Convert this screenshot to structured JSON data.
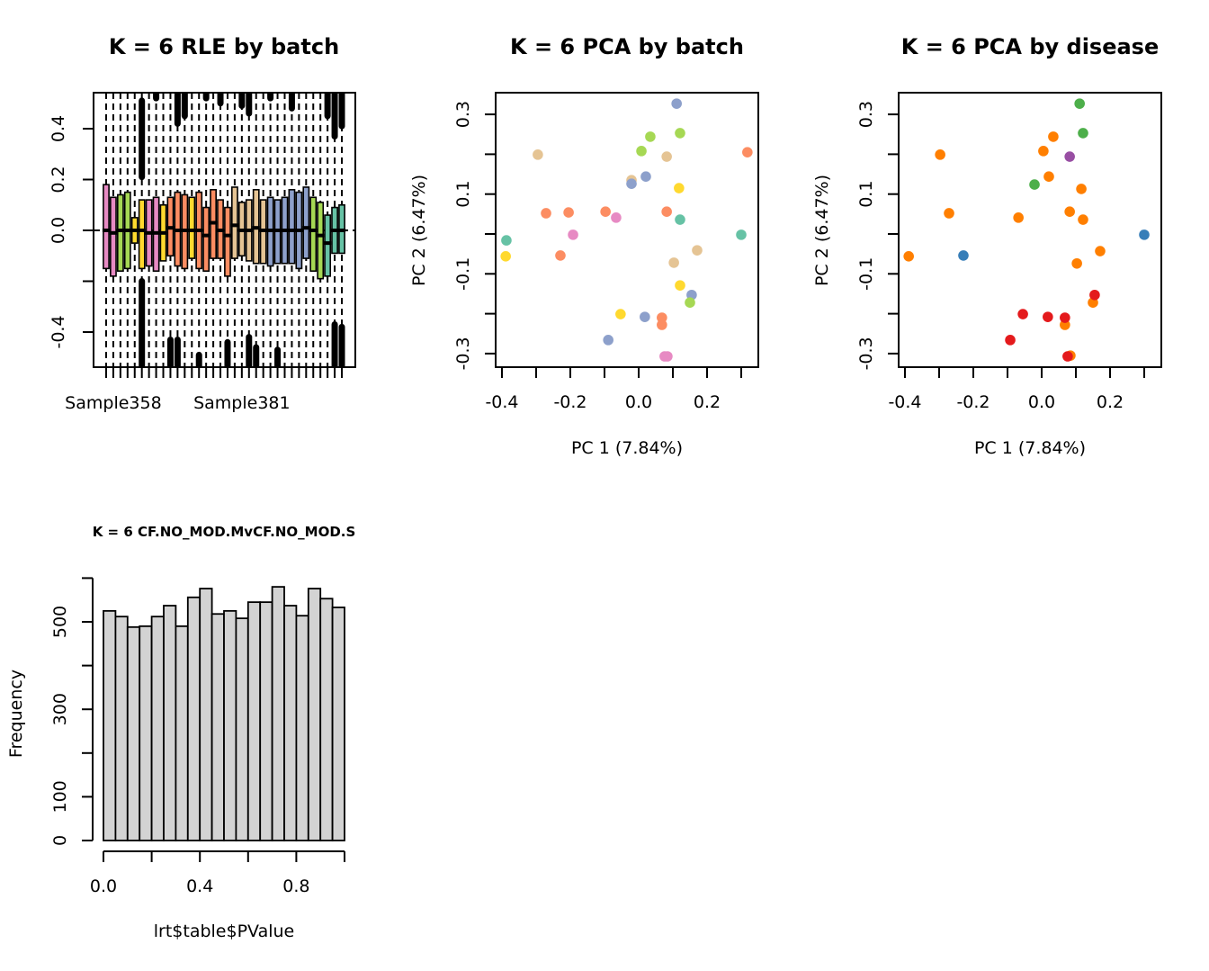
{
  "palettes": {
    "batch": {
      "teal": "#66C2A5",
      "orange": "#FC8D62",
      "blue": "#8DA0CB",
      "pink": "#E78AC3",
      "green": "#A6D854",
      "yellow": "#FFD92F",
      "tan": "#E5C494"
    },
    "disease": {
      "red": "#E41A1C",
      "blue": "#377EB8",
      "green": "#4DAF4A",
      "purple": "#984EA3",
      "orange": "#FF7F00"
    },
    "hist_fill": "#D3D3D3"
  },
  "chart_data": [
    {
      "id": "rle",
      "type": "box",
      "title": "K = 6 RLE by batch",
      "xlabel": "",
      "ylabel": "",
      "x_tick_labels": [
        "Sample358",
        "Sample381"
      ],
      "x_tick_label_index": [
        1,
        19
      ],
      "y_ticks": [
        -0.4,
        -0.2,
        0.0,
        0.2,
        0.4
      ],
      "y_tick_labels": [
        "-0.4",
        "",
        "0.0",
        "0.2",
        "0.4"
      ],
      "ylim": [
        -0.54,
        0.54
      ],
      "reference_line": 0,
      "boxes": [
        {
          "color": "pink",
          "q1": -0.15,
          "median": 0.0,
          "q3": 0.18
        },
        {
          "color": "pink",
          "q1": -0.18,
          "median": -0.01,
          "q3": 0.13
        },
        {
          "color": "green",
          "q1": -0.16,
          "median": 0.0,
          "q3": 0.14
        },
        {
          "color": "green",
          "q1": -0.15,
          "median": 0.0,
          "q3": 0.15
        },
        {
          "color": "yellow",
          "q1": -0.05,
          "median": 0.0,
          "q3": 0.05
        },
        {
          "color": "yellow",
          "q1": -0.15,
          "median": 0.0,
          "q3": 0.12
        },
        {
          "color": "pink",
          "q1": -0.14,
          "median": -0.01,
          "q3": 0.12
        },
        {
          "color": "pink",
          "q1": -0.16,
          "median": -0.01,
          "q3": 0.13
        },
        {
          "color": "yellow",
          "q1": -0.12,
          "median": -0.01,
          "q3": 0.1
        },
        {
          "color": "orange",
          "q1": -0.1,
          "median": 0.01,
          "q3": 0.13
        },
        {
          "color": "orange",
          "q1": -0.14,
          "median": 0.0,
          "q3": 0.15
        },
        {
          "color": "orange",
          "q1": -0.15,
          "median": 0.0,
          "q3": 0.14
        },
        {
          "color": "yellow",
          "q1": -0.11,
          "median": 0.0,
          "q3": 0.13
        },
        {
          "color": "orange",
          "q1": -0.15,
          "median": 0.0,
          "q3": 0.15
        },
        {
          "color": "orange",
          "q1": -0.16,
          "median": -0.02,
          "q3": 0.09
        },
        {
          "color": "orange",
          "q1": -0.11,
          "median": 0.03,
          "q3": 0.16
        },
        {
          "color": "orange",
          "q1": -0.11,
          "median": 0.0,
          "q3": 0.12
        },
        {
          "color": "orange",
          "q1": -0.18,
          "median": -0.02,
          "q3": 0.09
        },
        {
          "color": "tan",
          "q1": -0.11,
          "median": 0.02,
          "q3": 0.17
        },
        {
          "color": "tan",
          "q1": -0.1,
          "median": 0.0,
          "q3": 0.11
        },
        {
          "color": "tan",
          "q1": -0.12,
          "median": 0.0,
          "q3": 0.12
        },
        {
          "color": "tan",
          "q1": -0.13,
          "median": 0.01,
          "q3": 0.16
        },
        {
          "color": "tan",
          "q1": -0.13,
          "median": 0.0,
          "q3": 0.12
        },
        {
          "color": "blue",
          "q1": -0.14,
          "median": 0.0,
          "q3": 0.13
        },
        {
          "color": "blue",
          "q1": -0.13,
          "median": 0.0,
          "q3": 0.12
        },
        {
          "color": "blue",
          "q1": -0.13,
          "median": 0.0,
          "q3": 0.13
        },
        {
          "color": "blue",
          "q1": -0.13,
          "median": 0.0,
          "q3": 0.16
        },
        {
          "color": "blue",
          "q1": -0.15,
          "median": 0.0,
          "q3": 0.15
        },
        {
          "color": "blue",
          "q1": -0.11,
          "median": 0.01,
          "q3": 0.17
        },
        {
          "color": "green",
          "q1": -0.16,
          "median": 0.0,
          "q3": 0.13
        },
        {
          "color": "green",
          "q1": -0.19,
          "median": -0.02,
          "q3": 0.11
        },
        {
          "color": "teal",
          "q1": -0.18,
          "median": -0.05,
          "q3": 0.06
        },
        {
          "color": "teal",
          "q1": -0.09,
          "median": 0.0,
          "q3": 0.09
        },
        {
          "color": "teal",
          "q1": -0.09,
          "median": 0.0,
          "q3": 0.1
        }
      ]
    },
    {
      "id": "pca_batch",
      "type": "scatter",
      "title": "K = 6 PCA by batch",
      "xlabel": "PC 1 (7.84%)",
      "ylabel": "PC 2 (6.47%)",
      "x_ticks": [
        -0.4,
        -0.3,
        -0.2,
        -0.1,
        0.0,
        0.1,
        0.2,
        0.3
      ],
      "x_tick_labels": [
        "-0.4",
        "",
        "-0.2",
        "",
        "0.0",
        "",
        "0.2",
        ""
      ],
      "y_ticks": [
        -0.3,
        -0.2,
        -0.1,
        0.0,
        0.1,
        0.2,
        0.3
      ],
      "y_tick_labels": [
        "-0.3",
        "",
        "-0.1",
        "",
        "0.1",
        "",
        "0.3"
      ],
      "xlim": [
        -0.42,
        0.35
      ],
      "ylim": [
        -0.335,
        0.355
      ],
      "points": [
        {
          "x": 0.111,
          "y": 0.327,
          "color": "blue"
        },
        {
          "x": 0.121,
          "y": 0.253,
          "color": "green"
        },
        {
          "x": 0.034,
          "y": 0.244,
          "color": "green"
        },
        {
          "x": 0.008,
          "y": 0.208,
          "color": "green"
        },
        {
          "x": 0.082,
          "y": 0.194,
          "color": "tan"
        },
        {
          "x": 0.318,
          "y": 0.205,
          "color": "orange"
        },
        {
          "x": -0.021,
          "y": 0.135,
          "color": "tan"
        },
        {
          "x": 0.021,
          "y": 0.144,
          "color": "blue"
        },
        {
          "x": -0.021,
          "y": 0.126,
          "color": "blue"
        },
        {
          "x": 0.118,
          "y": 0.115,
          "color": "yellow"
        },
        {
          "x": -0.097,
          "y": 0.056,
          "color": "orange"
        },
        {
          "x": -0.066,
          "y": 0.041,
          "color": "pink"
        },
        {
          "x": 0.082,
          "y": 0.056,
          "color": "orange"
        },
        {
          "x": 0.121,
          "y": 0.036,
          "color": "teal"
        },
        {
          "x": 0.3,
          "y": -0.002,
          "color": "teal"
        },
        {
          "x": 0.171,
          "y": -0.041,
          "color": "tan"
        },
        {
          "x": 0.103,
          "y": -0.072,
          "color": "tan"
        },
        {
          "x": 0.121,
          "y": -0.129,
          "color": "yellow"
        },
        {
          "x": 0.155,
          "y": -0.153,
          "color": "blue"
        },
        {
          "x": 0.15,
          "y": -0.172,
          "color": "green"
        },
        {
          "x": -0.053,
          "y": -0.201,
          "color": "yellow"
        },
        {
          "x": 0.018,
          "y": -0.208,
          "color": "blue"
        },
        {
          "x": 0.068,
          "y": -0.21,
          "color": "orange"
        },
        {
          "x": 0.068,
          "y": -0.228,
          "color": "orange"
        },
        {
          "x": -0.089,
          "y": -0.266,
          "color": "blue"
        },
        {
          "x": 0.084,
          "y": -0.307,
          "color": "pink"
        },
        {
          "x": 0.076,
          "y": -0.307,
          "color": "pink"
        },
        {
          "x": -0.295,
          "y": 0.199,
          "color": "tan"
        },
        {
          "x": -0.271,
          "y": 0.052,
          "color": "orange"
        },
        {
          "x": -0.205,
          "y": 0.054,
          "color": "orange"
        },
        {
          "x": -0.192,
          "y": -0.002,
          "color": "pink"
        },
        {
          "x": -0.387,
          "y": -0.016,
          "color": "teal"
        },
        {
          "x": -0.389,
          "y": -0.056,
          "color": "yellow"
        },
        {
          "x": -0.229,
          "y": -0.054,
          "color": "orange"
        }
      ]
    },
    {
      "id": "pca_disease",
      "type": "scatter",
      "title": "K = 6 PCA by disease",
      "xlabel": "PC 1 (7.84%)",
      "ylabel": "PC 2 (6.47%)",
      "x_ticks": [
        -0.4,
        -0.3,
        -0.2,
        -0.1,
        0.0,
        0.1,
        0.2,
        0.3
      ],
      "x_tick_labels": [
        "-0.4",
        "",
        "-0.2",
        "",
        "0.0",
        "",
        "0.2",
        ""
      ],
      "y_ticks": [
        -0.3,
        -0.2,
        -0.1,
        0.0,
        0.1,
        0.2,
        0.3
      ],
      "y_tick_labels": [
        "-0.3",
        "",
        "-0.1",
        "",
        "0.1",
        "",
        "0.3"
      ],
      "xlim": [
        -0.42,
        0.35
      ],
      "ylim": [
        -0.335,
        0.355
      ],
      "points": [
        {
          "x": 0.111,
          "y": 0.327,
          "color": "green"
        },
        {
          "x": 0.121,
          "y": 0.253,
          "color": "green"
        },
        {
          "x": 0.034,
          "y": 0.244,
          "color": "orange"
        },
        {
          "x": 0.005,
          "y": 0.208,
          "color": "orange"
        },
        {
          "x": 0.082,
          "y": 0.194,
          "color": "purple"
        },
        {
          "x": 0.021,
          "y": 0.144,
          "color": "orange"
        },
        {
          "x": -0.021,
          "y": 0.124,
          "color": "green"
        },
        {
          "x": 0.116,
          "y": 0.113,
          "color": "orange"
        },
        {
          "x": -0.297,
          "y": 0.199,
          "color": "orange"
        },
        {
          "x": -0.271,
          "y": 0.052,
          "color": "orange"
        },
        {
          "x": -0.068,
          "y": 0.041,
          "color": "orange"
        },
        {
          "x": 0.082,
          "y": 0.056,
          "color": "orange"
        },
        {
          "x": 0.121,
          "y": 0.036,
          "color": "orange"
        },
        {
          "x": 0.3,
          "y": -0.002,
          "color": "blue"
        },
        {
          "x": -0.389,
          "y": -0.056,
          "color": "orange"
        },
        {
          "x": -0.229,
          "y": -0.054,
          "color": "blue"
        },
        {
          "x": 0.171,
          "y": -0.043,
          "color": "orange"
        },
        {
          "x": 0.103,
          "y": -0.074,
          "color": "orange"
        },
        {
          "x": 0.15,
          "y": -0.172,
          "color": "orange"
        },
        {
          "x": 0.155,
          "y": -0.153,
          "color": "red"
        },
        {
          "x": -0.055,
          "y": -0.201,
          "color": "red"
        },
        {
          "x": 0.018,
          "y": -0.208,
          "color": "red"
        },
        {
          "x": 0.068,
          "y": -0.228,
          "color": "orange"
        },
        {
          "x": 0.068,
          "y": -0.21,
          "color": "red"
        },
        {
          "x": -0.092,
          "y": -0.266,
          "color": "red"
        },
        {
          "x": 0.084,
          "y": -0.305,
          "color": "orange"
        },
        {
          "x": 0.076,
          "y": -0.307,
          "color": "red"
        }
      ]
    },
    {
      "id": "pvalue_hist",
      "type": "bar",
      "title": "K = 6 CF.NO_MOD.MvCF.NO_MOD.S",
      "xlabel": "lrt$table$PValue",
      "ylabel": "Frequency",
      "bin_width": 0.05,
      "x_range": [
        0,
        1
      ],
      "x_ticks": [
        0.0,
        0.2,
        0.4,
        0.6,
        0.8,
        1.0
      ],
      "x_tick_labels": [
        "0.0",
        "",
        "0.4",
        "",
        "0.8",
        ""
      ],
      "y_ticks": [
        0,
        100,
        200,
        300,
        400,
        500,
        600
      ],
      "y_tick_labels": [
        "0",
        "100",
        "",
        "300",
        "",
        "500",
        ""
      ],
      "ylim": [
        0,
        600
      ],
      "values": [
        525,
        512,
        488,
        490,
        512,
        537,
        490,
        556,
        576,
        518,
        525,
        508,
        545,
        545,
        580,
        537,
        514,
        576,
        553,
        533
      ]
    }
  ]
}
